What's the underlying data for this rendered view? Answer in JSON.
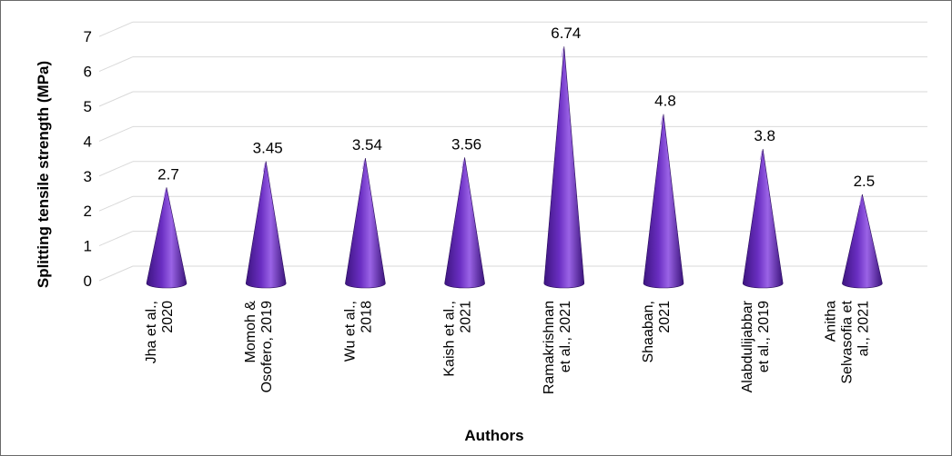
{
  "chart_data": {
    "type": "bar",
    "bar_shape": "cone",
    "title": "",
    "xlabel": "Authors",
    "ylabel": "Splitting tensile strength (MPa)",
    "categories": [
      [
        "Jha et al.,",
        "2020"
      ],
      [
        "Momoh &",
        "Osofero, 2019"
      ],
      [
        "Wu et al.,",
        "2018"
      ],
      [
        "Kaish et al.,",
        "2021"
      ],
      [
        "Ramakrishnan",
        "et al., 2021"
      ],
      [
        "Shaaban,",
        "2021"
      ],
      [
        "Alabdulijabbar",
        "et al., 2019"
      ],
      [
        "Anitha",
        "Selvasofia et",
        "al., 2021"
      ]
    ],
    "values": [
      2.7,
      3.45,
      3.54,
      3.56,
      6.74,
      4.8,
      3.8,
      2.5
    ],
    "data_labels": [
      "2.7",
      "3.45",
      "3.54",
      "3.56",
      "6.74",
      "4.8",
      "3.8",
      "2.5"
    ],
    "y_ticks": [
      0,
      1,
      2,
      3,
      4,
      5,
      6,
      7
    ],
    "ylim": [
      0,
      7
    ],
    "grid": true,
    "legend": "none",
    "colors": {
      "cone_dark": "#3d1580",
      "cone_mid": "#6a2ec2",
      "cone_light": "#9a63e6",
      "gridline": "#d9d9d9",
      "frame": "#6a6a6a"
    }
  }
}
